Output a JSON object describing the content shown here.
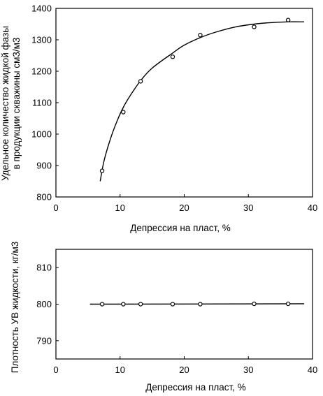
{
  "chart_data": [
    {
      "type": "scatter",
      "title": "",
      "xlabel": "Депрессия на пласт, %",
      "ylabel_line1": "Удельное количество жидкой фазы",
      "ylabel_line2": "в продукции скважины см3/м3",
      "xlim": [
        0,
        40
      ],
      "ylim": [
        800,
        1400
      ],
      "xticks": [
        0,
        10,
        20,
        30,
        40
      ],
      "yticks": [
        800,
        900,
        1000,
        1100,
        1200,
        1300,
        1400
      ],
      "xtick_labels": [
        "0",
        "10",
        "20",
        "30",
        "40"
      ],
      "ytick_labels": [
        "800",
        "900",
        "1000",
        "1100",
        "1200",
        "1300",
        "1400"
      ],
      "grid": false,
      "series": [
        {
          "marker": "circle",
          "x": [
            7.2,
            10.5,
            13.2,
            18.2,
            22.5,
            30.9,
            36.2
          ],
          "y": [
            883,
            1070,
            1168,
            1246,
            1315,
            1341,
            1363
          ]
        }
      ],
      "fit": {
        "x": [
          6.9,
          7.5,
          8.5,
          9.5,
          10.5,
          11.5,
          13.2,
          15,
          18.2,
          20,
          22.5,
          25,
          28,
          30.9,
          33,
          36.2,
          38.7
        ],
        "y": [
          850,
          915,
          985,
          1040,
          1085,
          1120,
          1170,
          1210,
          1258,
          1283,
          1307,
          1325,
          1341,
          1350,
          1354,
          1357,
          1357
        ]
      }
    },
    {
      "type": "scatter",
      "title": "",
      "xlabel": "Депрессия на пласт, %",
      "ylabel": "Плотность УВ жидкости, кг/м3",
      "xlim": [
        0,
        40
      ],
      "ylim": [
        785,
        815
      ],
      "xticks": [
        0,
        10,
        20,
        30,
        40
      ],
      "yticks": [
        790,
        800,
        810
      ],
      "xtick_labels": [
        "0",
        "10",
        "20",
        "30",
        "40"
      ],
      "ytick_labels": [
        "790",
        "800",
        "810"
      ],
      "grid": false,
      "series": [
        {
          "marker": "circle",
          "x": [
            7.2,
            10.5,
            13.2,
            18.2,
            22.5,
            30.9,
            36.2
          ],
          "y": [
            800,
            800,
            800,
            800,
            800,
            800.1,
            800.1
          ]
        }
      ],
      "fit": {
        "x": [
          5.3,
          38.7
        ],
        "y": [
          800,
          800.1
        ]
      }
    }
  ]
}
